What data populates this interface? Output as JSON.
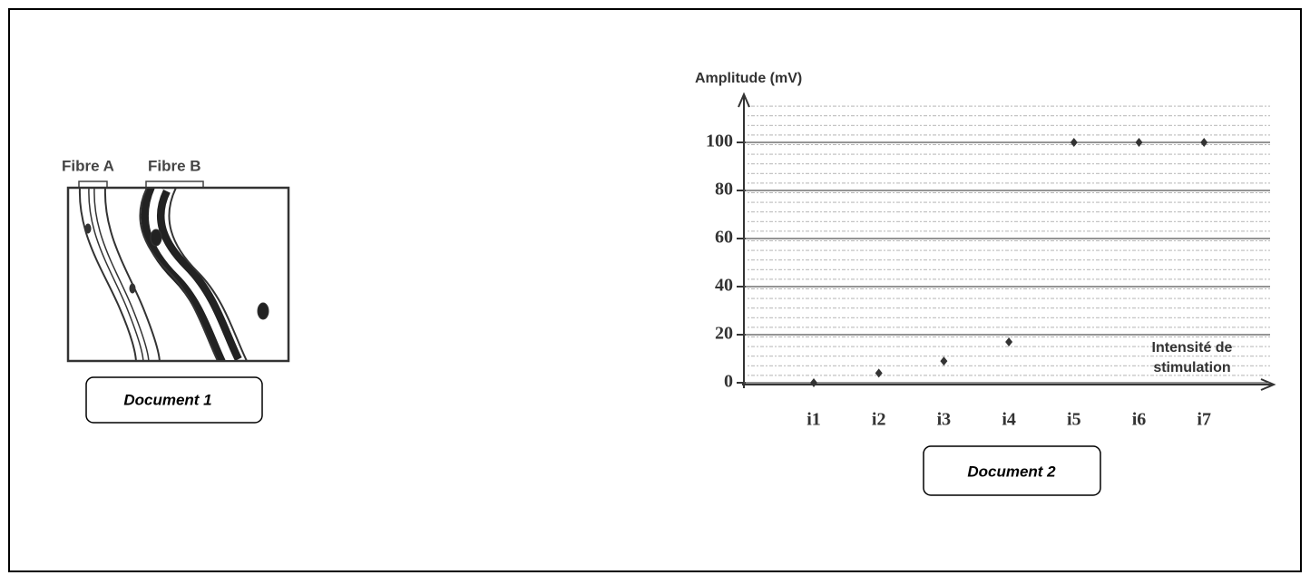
{
  "document1": {
    "fibre_a": "Fibre A",
    "fibre_b": "Fibre B",
    "caption": "Document 1"
  },
  "document2": {
    "caption": "Document 2"
  },
  "chart_data": {
    "type": "scatter",
    "y_label": "Amplitude (mV)",
    "x_label": [
      "Intensité de",
      "stimulation"
    ],
    "categories": [
      "i1",
      "i2",
      "i3",
      "i4",
      "i5",
      "i6",
      "i7"
    ],
    "values": [
      0,
      4,
      9,
      17,
      100,
      100,
      100
    ],
    "color": "#333333",
    "ylim": [
      0,
      120
    ],
    "yticks": [
      0,
      20,
      40,
      60,
      80,
      100
    ],
    "grid": true
  }
}
